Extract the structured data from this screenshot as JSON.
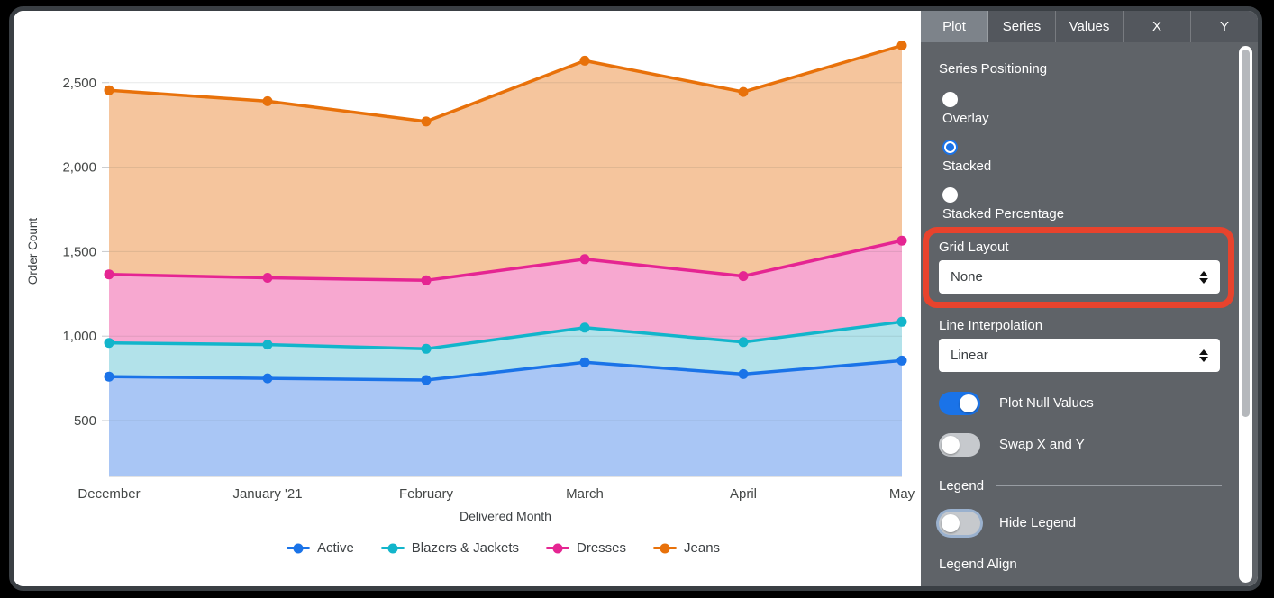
{
  "chart_data": {
    "type": "area",
    "stacked": true,
    "x": [
      "December",
      "January '21",
      "February",
      "March",
      "April",
      "May"
    ],
    "xlabel": "Delivered Month",
    "ylabel": "Order Count",
    "y_axis": {
      "tick_values": [
        2500,
        2000,
        1500,
        1000,
        500
      ],
      "tick_labels": [
        "2,500",
        "2,000",
        "1,500",
        "1,000",
        "500"
      ],
      "min": 170,
      "max": 2830,
      "grid": true
    },
    "legend_position": "bottom",
    "series": [
      {
        "name": "Active",
        "line_color": "#1a73e8",
        "fill_color": "#a9c6f5",
        "values": [
          760,
          750,
          740,
          845,
          775,
          855
        ],
        "stacked_top": [
          760,
          750,
          740,
          845,
          775,
          855
        ]
      },
      {
        "name": "Blazers & Jackets",
        "line_color": "#12b5cb",
        "fill_color": "#b2e2ea",
        "values": [
          200,
          200,
          185,
          205,
          190,
          230
        ],
        "stacked_top": [
          960,
          950,
          925,
          1050,
          965,
          1085
        ]
      },
      {
        "name": "Dresses",
        "line_color": "#e52592",
        "fill_color": "#f7a8d0",
        "values": [
          405,
          395,
          405,
          405,
          390,
          480
        ],
        "stacked_top": [
          1365,
          1345,
          1330,
          1455,
          1355,
          1565
        ]
      },
      {
        "name": "Jeans",
        "line_color": "#e8710a",
        "fill_color": "#f5c59d",
        "values": [
          1090,
          1045,
          940,
          1175,
          1090,
          1155
        ],
        "stacked_top": [
          2455,
          2390,
          2270,
          2630,
          2445,
          2720
        ]
      }
    ]
  },
  "panel": {
    "tabs": [
      {
        "label": "Plot",
        "active": true
      },
      {
        "label": "Series",
        "active": false
      },
      {
        "label": "Values",
        "active": false
      },
      {
        "label": "X",
        "active": false
      },
      {
        "label": "Y",
        "active": false
      }
    ],
    "series_positioning": {
      "label": "Series Positioning",
      "options": [
        {
          "label": "Overlay",
          "selected": false
        },
        {
          "label": "Stacked",
          "selected": true
        },
        {
          "label": "Stacked Percentage",
          "selected": false
        }
      ]
    },
    "grid_layout": {
      "label": "Grid Layout",
      "value": "None"
    },
    "line_interpolation": {
      "label": "Line Interpolation",
      "value": "Linear"
    },
    "plot_null_values": {
      "label": "Plot Null Values",
      "on": true
    },
    "swap_x_y": {
      "label": "Swap X and Y",
      "on": false
    },
    "legend_section": {
      "header": "Legend"
    },
    "hide_legend": {
      "label": "Hide Legend",
      "on": false,
      "focus_ring": true
    },
    "legend_align": {
      "label": "Legend Align"
    }
  },
  "annotation": {
    "type": "highlight-box",
    "target": "Grid Layout",
    "color": "#e8432d"
  },
  "colors": {
    "accent_blue": "#1a73e8",
    "panel_bg": "#5f6368",
    "tabbar_bg": "#53575d",
    "active_tab_bg": "#7d838a",
    "axis_text": "#3c4043",
    "annotation_red": "#e8432d"
  }
}
